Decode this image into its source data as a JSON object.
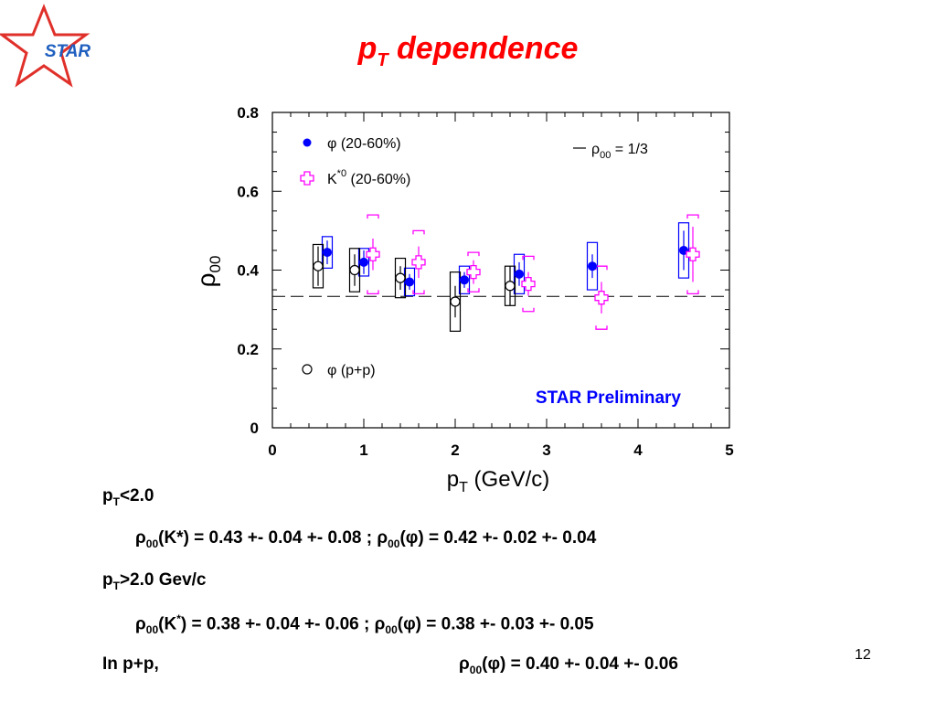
{
  "slide": {
    "logo_text": "STAR",
    "title_main": "p",
    "title_sub": "T",
    "title_rest": " dependence",
    "page_number": "12"
  },
  "colors": {
    "title": "#ff0000",
    "phi_auau": "#0000ff",
    "kstar": "#ff00ff",
    "phi_pp": "#000000",
    "preliminary": "#0000ff"
  },
  "chart_data": {
    "type": "scatter",
    "xlabel_main": "p",
    "xlabel_sub": "T",
    "xlabel_rest": " (GeV/c)",
    "ylabel_main": "ρ",
    "ylabel_sub": "00",
    "xlim": [
      0,
      5
    ],
    "ylim": [
      0,
      0.8
    ],
    "x_ticks": [
      "0",
      "1",
      "2",
      "3",
      "4",
      "5"
    ],
    "y_ticks": [
      "0",
      "0.2",
      "0.4",
      "0.6",
      "0.8"
    ],
    "reference_line": {
      "y": 0.3333,
      "label_main": "ρ",
      "label_sub": "00",
      "label_rest": " = 1/3"
    },
    "annotation": "STAR Preliminary",
    "series": [
      {
        "name_main": "φ",
        "name_rest": "(20-60%)",
        "marker": "filled-circle",
        "color": "#0000ff",
        "points": [
          {
            "x": 0.6,
            "y": 0.445,
            "err": 0.03,
            "sys": 0.04
          },
          {
            "x": 1.0,
            "y": 0.42,
            "err": 0.03,
            "sys": 0.035
          },
          {
            "x": 1.5,
            "y": 0.37,
            "err": 0.02,
            "sys": 0.035
          },
          {
            "x": 2.1,
            "y": 0.375,
            "err": 0.02,
            "sys": 0.035
          },
          {
            "x": 2.7,
            "y": 0.39,
            "err": 0.03,
            "sys": 0.05
          },
          {
            "x": 3.5,
            "y": 0.41,
            "err": 0.03,
            "sys": 0.06
          },
          {
            "x": 4.5,
            "y": 0.45,
            "err": 0.05,
            "sys": 0.07
          }
        ]
      },
      {
        "name_main": "K",
        "name_sup": "*0",
        "name_rest": "(20-60%)",
        "marker": "open-cross",
        "color": "#ff00ff",
        "points": [
          {
            "x": 1.1,
            "y": 0.44,
            "err": 0.04,
            "sys": 0.1
          },
          {
            "x": 1.6,
            "y": 0.42,
            "err": 0.04,
            "sys": 0.08
          },
          {
            "x": 2.2,
            "y": 0.395,
            "err": 0.03,
            "sys": 0.05
          },
          {
            "x": 2.8,
            "y": 0.365,
            "err": 0.03,
            "sys": 0.07
          },
          {
            "x": 3.6,
            "y": 0.33,
            "err": 0.04,
            "sys": 0.08
          },
          {
            "x": 4.6,
            "y": 0.44,
            "err": 0.07,
            "sys": 0.1
          }
        ]
      },
      {
        "name_main": "φ",
        "name_rest": "(p+p)",
        "marker": "open-circle",
        "color": "#000000",
        "points": [
          {
            "x": 0.5,
            "y": 0.41,
            "err": 0.05,
            "sys": 0.055
          },
          {
            "x": 0.9,
            "y": 0.4,
            "err": 0.04,
            "sys": 0.055
          },
          {
            "x": 1.4,
            "y": 0.38,
            "err": 0.03,
            "sys": 0.05
          },
          {
            "x": 2.0,
            "y": 0.32,
            "err": 0.04,
            "sys": 0.075
          },
          {
            "x": 2.6,
            "y": 0.36,
            "err": 0.05,
            "sys": 0.05
          }
        ]
      }
    ]
  },
  "results": {
    "line1": {
      "p": "p",
      "sub": "T",
      "rest": "<2.0"
    },
    "line2": {
      "rho1": "ρ",
      "sub1": "00",
      "mid1": "(K*) = 0.43 +- 0.04 +- 0.08 ; ",
      "rho2": "ρ",
      "sub2": "00",
      "mid2": "(φ) = 0.42 +- 0.02 +- 0.04"
    },
    "line3": {
      "p": "p",
      "sub": "T",
      "rest": ">2.0 Gev/c"
    },
    "line4": {
      "rho1": "ρ",
      "sub1": "00",
      "k": "(K",
      "sup": "*",
      "mid1": ") = 0.38 +- 0.04 +- 0.06 ; ",
      "rho2": "ρ",
      "sub2": "00",
      "mid2": "(φ) = 0.38 +- 0.03 +- 0.05"
    },
    "line5": {
      "label": "In p+p,",
      "rho": "ρ",
      "sub": "00",
      "value": "(φ) = 0.40 +- 0.04 +- 0.06"
    }
  }
}
